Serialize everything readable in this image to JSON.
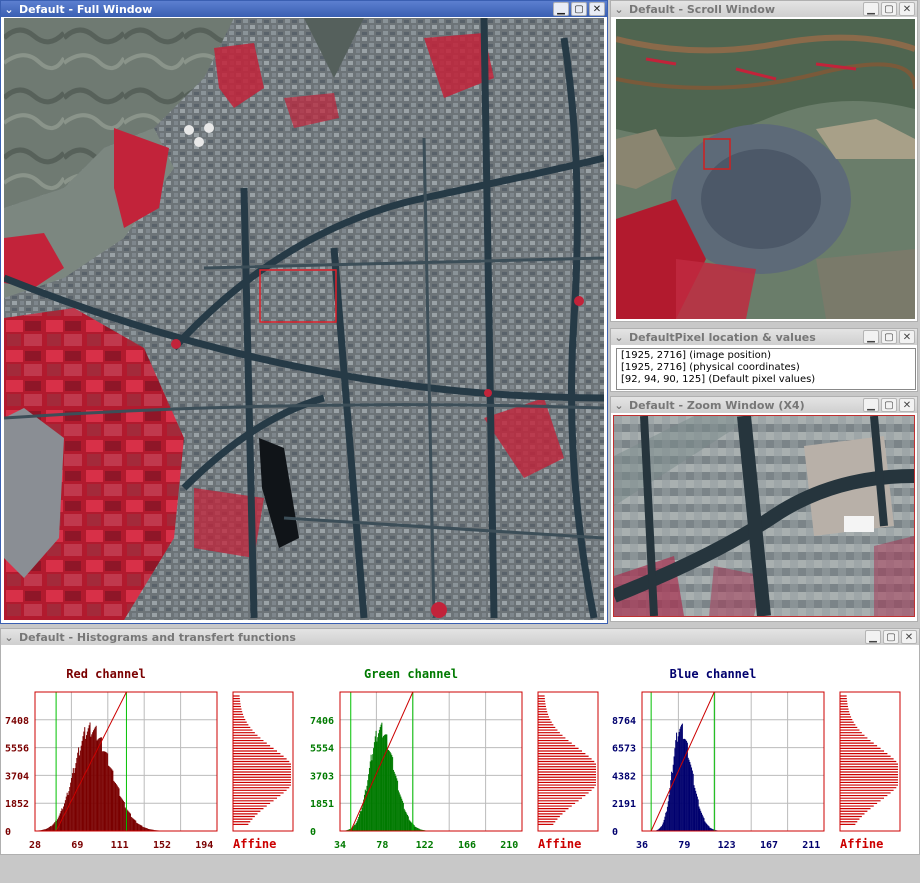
{
  "windows": {
    "full": {
      "title": "Default - Full Window",
      "min": "▁",
      "max": "▢",
      "close": "✕"
    },
    "scroll": {
      "title": "Default - Scroll Window",
      "min": "▁",
      "max": "▢",
      "close": "✕"
    },
    "pixel": {
      "title": "DefaultPixel location & values",
      "min": "▁",
      "max": "▢",
      "close": "✕",
      "lines": [
        "[1925, 2716] (image position)",
        "[1925, 2716] (physical coordinates)",
        "[92, 94, 90, 125] (Default pixel values)"
      ]
    },
    "zoom": {
      "title": "Default - Zoom Window (X4)",
      "min": "▁",
      "max": "▢",
      "close": "✕"
    },
    "histogram": {
      "title": "Default - Histograms and transfert functions",
      "min": "▁",
      "max": "▢",
      "close": "✕"
    }
  },
  "icons": {
    "menu": "chevron-down-icon",
    "minimize": "minimize-icon",
    "maximize": "maximize-icon",
    "close": "close-icon"
  },
  "colors": {
    "titlebar_active": "#3a5fb2",
    "red_channel": "#8b0000",
    "green_channel": "#006400",
    "blue_channel": "#00008b",
    "transfer": "#cc0000",
    "threshold": "#00cc00"
  },
  "chart_data": [
    {
      "type": "bar",
      "title": "Red channel",
      "color": "#7a0000",
      "y_ticks": [
        "0",
        "1852",
        "3704",
        "5556",
        "7408"
      ],
      "x_ticks": [
        "28",
        "69",
        "111",
        "152",
        "194"
      ],
      "ylim": [
        0,
        9260
      ],
      "xlim": [
        28,
        235
      ],
      "thresholds": [
        52,
        132
      ],
      "peak_x": 90,
      "peak_y": 7400,
      "spread_left": 18,
      "spread_right": 24,
      "transfer_label": "Affine"
    },
    {
      "type": "bar",
      "title": "Green channel",
      "color": "#007a00",
      "y_ticks": [
        "0",
        "1851",
        "3703",
        "5554",
        "7406"
      ],
      "x_ticks": [
        "34",
        "78",
        "122",
        "166",
        "210"
      ],
      "ylim": [
        0,
        9258
      ],
      "xlim": [
        34,
        254
      ],
      "thresholds": [
        47,
        122
      ],
      "peak_x": 82,
      "peak_y": 7350,
      "spread_left": 13,
      "spread_right": 17,
      "transfer_label": "Affine"
    },
    {
      "type": "bar",
      "title": "Blue channel",
      "color": "#00006e",
      "y_ticks": [
        "0",
        "2191",
        "4382",
        "6573",
        "8764"
      ],
      "x_ticks": [
        "36",
        "79",
        "123",
        "167",
        "211"
      ],
      "ylim": [
        0,
        10955
      ],
      "xlim": [
        36,
        255
      ],
      "thresholds": [
        47,
        123
      ],
      "peak_x": 81,
      "peak_y": 8760,
      "spread_left": 9,
      "spread_right": 14,
      "transfer_label": "Affine"
    }
  ]
}
